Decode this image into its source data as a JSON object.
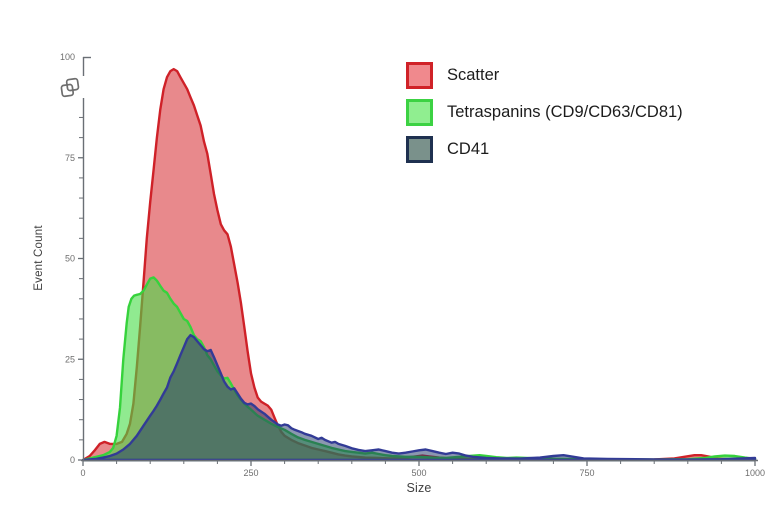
{
  "chart_data": {
    "type": "area",
    "title": "",
    "xlabel": "Size",
    "ylabel": "Event Count",
    "xlim": [
      0,
      1000
    ],
    "ylim": [
      0,
      100
    ],
    "x_major_ticks": [
      0,
      250,
      500,
      750,
      1000
    ],
    "x_minor_step": 50,
    "y_major_ticks": [
      0,
      25,
      50,
      75,
      100
    ],
    "y_minor_step": 5,
    "grid": false,
    "axis_color": "#6a6f75",
    "legend": {
      "position": "top-right",
      "items": [
        {
          "label": "Scatter",
          "fill": "#F0898D",
          "border": "#D02228"
        },
        {
          "label": "Tetraspanins (CD9/CD63/CD81)",
          "fill": "#90EE90",
          "border": "#3CD243"
        },
        {
          "label": "CD41",
          "fill": "#7A918B",
          "border": "#1F3150"
        }
      ]
    },
    "series": [
      {
        "name": "Scatter",
        "stroke": "#CF2128",
        "fill": "rgba(213,40,46,0.55)",
        "points": [
          [
            0,
            0
          ],
          [
            10,
            1
          ],
          [
            18,
            2.5
          ],
          [
            25,
            4
          ],
          [
            32,
            4.5
          ],
          [
            40,
            4
          ],
          [
            50,
            4
          ],
          [
            58,
            4.5
          ],
          [
            65,
            6.5
          ],
          [
            70,
            9
          ],
          [
            75,
            14
          ],
          [
            80,
            23
          ],
          [
            85,
            33
          ],
          [
            90,
            44
          ],
          [
            95,
            55
          ],
          [
            100,
            64
          ],
          [
            105,
            72
          ],
          [
            110,
            80
          ],
          [
            115,
            87
          ],
          [
            120,
            92
          ],
          [
            125,
            95
          ],
          [
            130,
            96.5
          ],
          [
            135,
            97
          ],
          [
            140,
            96.5
          ],
          [
            145,
            95
          ],
          [
            150,
            93.5
          ],
          [
            155,
            92
          ],
          [
            160,
            90
          ],
          [
            165,
            88
          ],
          [
            170,
            85.5
          ],
          [
            175,
            83
          ],
          [
            180,
            79
          ],
          [
            185,
            76
          ],
          [
            190,
            71
          ],
          [
            195,
            66
          ],
          [
            200,
            62
          ],
          [
            205,
            58.5
          ],
          [
            210,
            57
          ],
          [
            215,
            56
          ],
          [
            220,
            53
          ],
          [
            225,
            48.5
          ],
          [
            230,
            44
          ],
          [
            235,
            39
          ],
          [
            240,
            33
          ],
          [
            245,
            27
          ],
          [
            250,
            21.5
          ],
          [
            255,
            18
          ],
          [
            260,
            15.5
          ],
          [
            265,
            14.5
          ],
          [
            270,
            14
          ],
          [
            275,
            13.5
          ],
          [
            280,
            12.5
          ],
          [
            285,
            10.5
          ],
          [
            290,
            8.5
          ],
          [
            295,
            7
          ],
          [
            300,
            6
          ],
          [
            310,
            5
          ],
          [
            320,
            4.2
          ],
          [
            330,
            3.6
          ],
          [
            340,
            3
          ],
          [
            350,
            2.6
          ],
          [
            360,
            2.2
          ],
          [
            370,
            1.8
          ],
          [
            380,
            1.4
          ],
          [
            390,
            1.1
          ],
          [
            400,
            0.9
          ],
          [
            420,
            0.6
          ],
          [
            440,
            0.5
          ],
          [
            460,
            0.4
          ],
          [
            480,
            0.6
          ],
          [
            495,
            0.9
          ],
          [
            505,
            1.1
          ],
          [
            515,
            0.9
          ],
          [
            530,
            0.6
          ],
          [
            545,
            0.4
          ],
          [
            560,
            0.3
          ],
          [
            600,
            0.2
          ],
          [
            650,
            0.15
          ],
          [
            700,
            0.15
          ],
          [
            750,
            0.1
          ],
          [
            800,
            0.1
          ],
          [
            850,
            0.15
          ],
          [
            880,
            0.4
          ],
          [
            895,
            0.8
          ],
          [
            910,
            1.2
          ],
          [
            920,
            1.2
          ],
          [
            930,
            0.9
          ],
          [
            945,
            0.4
          ],
          [
            960,
            0.2
          ],
          [
            1000,
            0.1
          ]
        ]
      },
      {
        "name": "Tetraspanins (CD9/CD63/CD81)",
        "stroke": "#36D23C",
        "fill": "rgba(70,220,70,0.6)",
        "points": [
          [
            0,
            0
          ],
          [
            10,
            0.4
          ],
          [
            20,
            0.8
          ],
          [
            30,
            1.2
          ],
          [
            40,
            2
          ],
          [
            45,
            3
          ],
          [
            50,
            6
          ],
          [
            55,
            13
          ],
          [
            60,
            25
          ],
          [
            65,
            34
          ],
          [
            68,
            38
          ],
          [
            72,
            40
          ],
          [
            76,
            40.8
          ],
          [
            80,
            41
          ],
          [
            85,
            41.2
          ],
          [
            90,
            42
          ],
          [
            95,
            43.5
          ],
          [
            100,
            45
          ],
          [
            105,
            45.3
          ],
          [
            110,
            44.5
          ],
          [
            115,
            43.2
          ],
          [
            120,
            42
          ],
          [
            125,
            41.5
          ],
          [
            130,
            40
          ],
          [
            135,
            38.8
          ],
          [
            140,
            38
          ],
          [
            145,
            36.5
          ],
          [
            150,
            35
          ],
          [
            155,
            34.5
          ],
          [
            160,
            33
          ],
          [
            165,
            31
          ],
          [
            170,
            30
          ],
          [
            175,
            29.5
          ],
          [
            180,
            28
          ],
          [
            185,
            26
          ],
          [
            190,
            25
          ],
          [
            195,
            23.5
          ],
          [
            200,
            22
          ],
          [
            205,
            21
          ],
          [
            210,
            20.2
          ],
          [
            215,
            20.4
          ],
          [
            220,
            19
          ],
          [
            225,
            17.5
          ],
          [
            230,
            16
          ],
          [
            235,
            15
          ],
          [
            240,
            14
          ],
          [
            245,
            13.2
          ],
          [
            250,
            12.5
          ],
          [
            260,
            11
          ],
          [
            270,
            10
          ],
          [
            280,
            9
          ],
          [
            290,
            8.2
          ],
          [
            300,
            7.5
          ],
          [
            310,
            6.5
          ],
          [
            320,
            5.6
          ],
          [
            330,
            5
          ],
          [
            340,
            4.5
          ],
          [
            350,
            4
          ],
          [
            360,
            3.5
          ],
          [
            370,
            3
          ],
          [
            380,
            2.6
          ],
          [
            390,
            2.2
          ],
          [
            400,
            2
          ],
          [
            410,
            1.8
          ],
          [
            420,
            1.6
          ],
          [
            430,
            1.8
          ],
          [
            440,
            1.5
          ],
          [
            450,
            1.2
          ],
          [
            460,
            1
          ],
          [
            480,
            0.8
          ],
          [
            500,
            0.8
          ],
          [
            520,
            0.6
          ],
          [
            540,
            0.5
          ],
          [
            560,
            0.8
          ],
          [
            575,
            1
          ],
          [
            590,
            1.2
          ],
          [
            600,
            1
          ],
          [
            615,
            0.7
          ],
          [
            630,
            0.5
          ],
          [
            645,
            0.6
          ],
          [
            660,
            0.5
          ],
          [
            700,
            0.3
          ],
          [
            750,
            0.2
          ],
          [
            800,
            0.15
          ],
          [
            850,
            0.1
          ],
          [
            900,
            0.2
          ],
          [
            925,
            0.5
          ],
          [
            940,
            0.9
          ],
          [
            955,
            1.1
          ],
          [
            970,
            1
          ],
          [
            985,
            0.6
          ],
          [
            1000,
            0.3
          ]
        ]
      },
      {
        "name": "CD41",
        "stroke": "#323B96",
        "fill": "rgba(32,56,104,0.52)",
        "points": [
          [
            0,
            0
          ],
          [
            20,
            0.3
          ],
          [
            30,
            0.6
          ],
          [
            40,
            1
          ],
          [
            50,
            1.6
          ],
          [
            60,
            2.6
          ],
          [
            70,
            4
          ],
          [
            80,
            6
          ],
          [
            90,
            8.5
          ],
          [
            100,
            11
          ],
          [
            105,
            12.2
          ],
          [
            110,
            13.5
          ],
          [
            115,
            15
          ],
          [
            120,
            16.5
          ],
          [
            125,
            18
          ],
          [
            130,
            20.5
          ],
          [
            135,
            22
          ],
          [
            140,
            24
          ],
          [
            145,
            26
          ],
          [
            150,
            28
          ],
          [
            155,
            30
          ],
          [
            160,
            31
          ],
          [
            165,
            30.5
          ],
          [
            170,
            29.5
          ],
          [
            175,
            28.5
          ],
          [
            180,
            27.5
          ],
          [
            185,
            27
          ],
          [
            190,
            27.3
          ],
          [
            195,
            25.5
          ],
          [
            200,
            23.5
          ],
          [
            205,
            21.5
          ],
          [
            210,
            19.5
          ],
          [
            215,
            18.2
          ],
          [
            220,
            17.5
          ],
          [
            225,
            17.8
          ],
          [
            230,
            16.5
          ],
          [
            235,
            15.2
          ],
          [
            240,
            14.2
          ],
          [
            245,
            13.8
          ],
          [
            250,
            14
          ],
          [
            255,
            13.4
          ],
          [
            260,
            12.6
          ],
          [
            270,
            11.5
          ],
          [
            280,
            10
          ],
          [
            290,
            8.8
          ],
          [
            295,
            8.5
          ],
          [
            300,
            8.8
          ],
          [
            305,
            8.6
          ],
          [
            310,
            7.9
          ],
          [
            315,
            7.5
          ],
          [
            320,
            7.2
          ],
          [
            325,
            6.9
          ],
          [
            330,
            6.5
          ],
          [
            340,
            6
          ],
          [
            350,
            5.2
          ],
          [
            355,
            5.5
          ],
          [
            360,
            5
          ],
          [
            370,
            4.3
          ],
          [
            375,
            4.5
          ],
          [
            380,
            4
          ],
          [
            390,
            3.5
          ],
          [
            400,
            2.9
          ],
          [
            410,
            2.5
          ],
          [
            420,
            2.2
          ],
          [
            430,
            2.4
          ],
          [
            440,
            2.6
          ],
          [
            450,
            2.2
          ],
          [
            460,
            1.8
          ],
          [
            470,
            1.6
          ],
          [
            480,
            1.8
          ],
          [
            490,
            2.1
          ],
          [
            500,
            2.4
          ],
          [
            510,
            2.6
          ],
          [
            520,
            2.2
          ],
          [
            530,
            1.8
          ],
          [
            540,
            1.5
          ],
          [
            550,
            1.8
          ],
          [
            560,
            1.6
          ],
          [
            570,
            1.1
          ],
          [
            580,
            0.8
          ],
          [
            600,
            0.5
          ],
          [
            620,
            0.4
          ],
          [
            650,
            0.35
          ],
          [
            680,
            0.6
          ],
          [
            700,
            1
          ],
          [
            715,
            1.2
          ],
          [
            730,
            0.8
          ],
          [
            745,
            0.4
          ],
          [
            780,
            0.25
          ],
          [
            850,
            0.15
          ],
          [
            900,
            0.1
          ],
          [
            950,
            0.2
          ],
          [
            980,
            0.4
          ],
          [
            1000,
            0.5
          ]
        ]
      }
    ]
  },
  "icons": {
    "top_left": "overlapping-squares-icon"
  }
}
